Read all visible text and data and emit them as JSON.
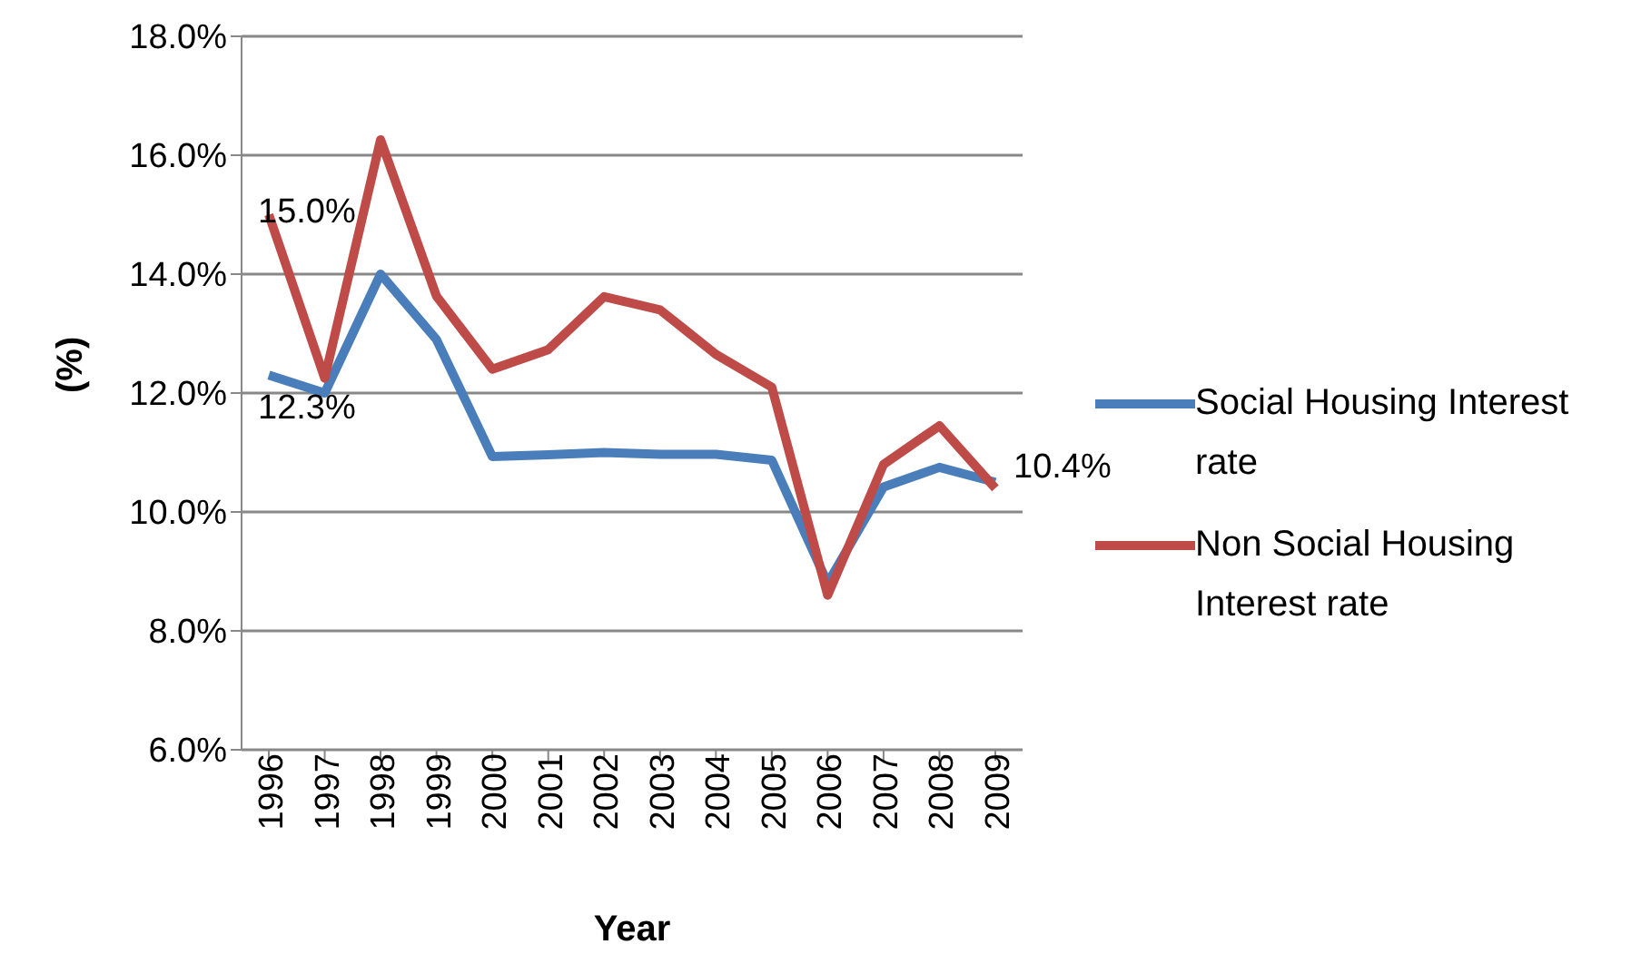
{
  "chart_data": {
    "type": "line",
    "xlabel": "Year",
    "ylabel": "(%)",
    "categories": [
      "1996",
      "1997",
      "1998",
      "1999",
      "2000",
      "2001",
      "2002",
      "2003",
      "2004",
      "2005",
      "2006",
      "2007",
      "2008",
      "2009"
    ],
    "series": [
      {
        "name": "Social Housing Interest rate",
        "color": "#4a7ebb",
        "values": [
          12.3,
          12.0,
          14.0,
          12.9,
          10.93,
          10.96,
          11.0,
          10.97,
          10.97,
          10.87,
          8.8,
          10.42,
          10.75,
          10.5
        ],
        "value_labels": [
          "12.3%",
          null,
          null,
          null,
          null,
          null,
          null,
          null,
          null,
          null,
          null,
          null,
          null,
          null
        ]
      },
      {
        "name": "Non Social Housing Interest rate",
        "color": "#be4b48",
        "values": [
          15.0,
          12.25,
          16.26,
          13.63,
          12.4,
          12.73,
          13.62,
          13.4,
          12.65,
          12.1,
          8.6,
          10.8,
          11.45,
          10.4
        ],
        "value_labels": [
          "15.0%",
          null,
          null,
          null,
          null,
          null,
          null,
          null,
          null,
          null,
          null,
          null,
          null,
          "10.4%"
        ]
      }
    ],
    "ylim": [
      6,
      18
    ],
    "yticks": [
      {
        "value": 6,
        "label": "6.0%"
      },
      {
        "value": 8,
        "label": "8.0%"
      },
      {
        "value": 10,
        "label": "10.0%"
      },
      {
        "value": 12,
        "label": "12.0%"
      },
      {
        "value": 14,
        "label": "14.0%"
      },
      {
        "value": 16,
        "label": "16.0%"
      },
      {
        "value": 18,
        "label": "18.0%"
      }
    ],
    "grid": "y",
    "legend": "right",
    "marker": "none",
    "line_style": "solid"
  }
}
